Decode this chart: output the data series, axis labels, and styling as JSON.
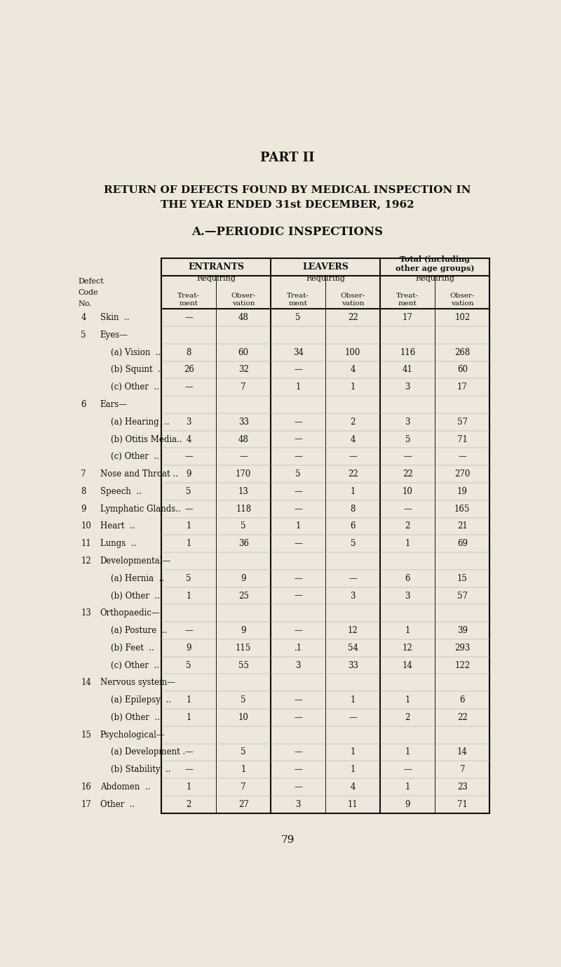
{
  "title_part": "PART II",
  "title_main_1": "RETURN OF DEFECTS FOUND BY MEDICAL INSPECTION IN",
  "title_main_2": "THE YEAR ENDED 31st DECEMBER, 1962",
  "title_section": "A.—PERIODIC INSPECTIONS",
  "bg_color": "#ede8db",
  "page_number": "79",
  "rows": [
    {
      "code": "4",
      "indent": 0,
      "label": "Skin  ..",
      "e_treat": "—",
      "e_obs": "48",
      "l_treat": "5",
      "l_obs": "22",
      "t_treat": "17",
      "t_obs": "102"
    },
    {
      "code": "5",
      "indent": 0,
      "label": "Eyes—",
      "e_treat": "",
      "e_obs": "",
      "l_treat": "",
      "l_obs": "",
      "t_treat": "",
      "t_obs": ""
    },
    {
      "code": "",
      "indent": 1,
      "label": "(a) Vision  ..",
      "e_treat": "8",
      "e_obs": "60",
      "l_treat": "34",
      "l_obs": "100",
      "t_treat": "116",
      "t_obs": "268"
    },
    {
      "code": "",
      "indent": 1,
      "label": "(b) Squint  ..",
      "e_treat": "26",
      "e_obs": "32",
      "l_treat": "—",
      "l_obs": "4",
      "t_treat": "41",
      "t_obs": "60"
    },
    {
      "code": "",
      "indent": 1,
      "label": "(c) Other  ..",
      "e_treat": "—",
      "e_obs": "7",
      "l_treat": "1",
      "l_obs": "1",
      "t_treat": "3",
      "t_obs": "17"
    },
    {
      "code": "6",
      "indent": 0,
      "label": "Ears—",
      "e_treat": "",
      "e_obs": "",
      "l_treat": "",
      "l_obs": "",
      "t_treat": "",
      "t_obs": ""
    },
    {
      "code": "",
      "indent": 1,
      "label": "(a) Hearing  ..",
      "e_treat": "3",
      "e_obs": "33",
      "l_treat": "—",
      "l_obs": "2",
      "t_treat": "3",
      "t_obs": "57"
    },
    {
      "code": "",
      "indent": 1,
      "label": "(b) Otitis Media..",
      "e_treat": "4",
      "e_obs": "48",
      "l_treat": "—",
      "l_obs": "4",
      "t_treat": "5",
      "t_obs": "71"
    },
    {
      "code": "",
      "indent": 1,
      "label": "(c) Other  ..",
      "e_treat": "—",
      "e_obs": "—",
      "l_treat": "—",
      "l_obs": "—",
      "t_treat": "—",
      "t_obs": "—"
    },
    {
      "code": "7",
      "indent": 0,
      "label": "Nose and Throat ..",
      "e_treat": "9",
      "e_obs": "170",
      "l_treat": "5",
      "l_obs": "22",
      "t_treat": "22",
      "t_obs": "270"
    },
    {
      "code": "8",
      "indent": 0,
      "label": "Speech  ..",
      "e_treat": "5",
      "e_obs": "13",
      "l_treat": "—",
      "l_obs": "1",
      "t_treat": "10",
      "t_obs": "19"
    },
    {
      "code": "9",
      "indent": 0,
      "label": "Lymphatic Glands..",
      "e_treat": "—",
      "e_obs": "118",
      "l_treat": "—",
      "l_obs": "8",
      "t_treat": "—",
      "t_obs": "165"
    },
    {
      "code": "10",
      "indent": 0,
      "label": "Heart  ..",
      "e_treat": "1",
      "e_obs": "5",
      "l_treat": "1",
      "l_obs": "6",
      "t_treat": "2",
      "t_obs": "21"
    },
    {
      "code": "11",
      "indent": 0,
      "label": "Lungs  ..",
      "e_treat": "1",
      "e_obs": "36",
      "l_treat": "—",
      "l_obs": "5",
      "t_treat": "1",
      "t_obs": "69"
    },
    {
      "code": "12",
      "indent": 0,
      "label": "Developmental—",
      "e_treat": "",
      "e_obs": "",
      "l_treat": "",
      "l_obs": "",
      "t_treat": "",
      "t_obs": ""
    },
    {
      "code": "",
      "indent": 1,
      "label": "(a) Hernia  ..",
      "e_treat": "5",
      "e_obs": "9",
      "l_treat": "—",
      "l_obs": "—",
      "t_treat": "6",
      "t_obs": "15"
    },
    {
      "code": "",
      "indent": 1,
      "label": "(b) Other  ..",
      "e_treat": "1",
      "e_obs": "25",
      "l_treat": "—",
      "l_obs": "3",
      "t_treat": "3",
      "t_obs": "57"
    },
    {
      "code": "13",
      "indent": 0,
      "label": "Orthopaedic—",
      "e_treat": "",
      "e_obs": "",
      "l_treat": "",
      "l_obs": "",
      "t_treat": "",
      "t_obs": ""
    },
    {
      "code": "",
      "indent": 1,
      "label": "(a) Posture  ..",
      "e_treat": "—",
      "e_obs": "9",
      "l_treat": "—",
      "l_obs": "12",
      "t_treat": "1",
      "t_obs": "39"
    },
    {
      "code": "",
      "indent": 1,
      "label": "(b) Feet  ..",
      "e_treat": "9",
      "e_obs": "115",
      "l_treat": ".1",
      "l_obs": "54",
      "t_treat": "12",
      "t_obs": "293"
    },
    {
      "code": "",
      "indent": 1,
      "label": "(c) Other  ..",
      "e_treat": "5",
      "e_obs": "55",
      "l_treat": "3",
      "l_obs": "33",
      "t_treat": "14",
      "t_obs": "122"
    },
    {
      "code": "14",
      "indent": 0,
      "label": "Nervous system—",
      "e_treat": "",
      "e_obs": "",
      "l_treat": "",
      "l_obs": "",
      "t_treat": "",
      "t_obs": ""
    },
    {
      "code": "",
      "indent": 1,
      "label": "(a) Epilepsy  ..",
      "e_treat": "1",
      "e_obs": "5",
      "l_treat": "—",
      "l_obs": "1",
      "t_treat": "1",
      "t_obs": "6"
    },
    {
      "code": "",
      "indent": 1,
      "label": "(b) Other  ..",
      "e_treat": "1",
      "e_obs": "10",
      "l_treat": "—",
      "l_obs": "—",
      "t_treat": "2",
      "t_obs": "22"
    },
    {
      "code": "15",
      "indent": 0,
      "label": "Psychological—",
      "e_treat": "",
      "e_obs": "",
      "l_treat": "",
      "l_obs": "",
      "t_treat": "",
      "t_obs": ""
    },
    {
      "code": "",
      "indent": 1,
      "label": "(a) Development .",
      "e_treat": "—",
      "e_obs": "5",
      "l_treat": "—",
      "l_obs": "1",
      "t_treat": "1",
      "t_obs": "14"
    },
    {
      "code": "",
      "indent": 1,
      "label": "(b) Stability  ..",
      "e_treat": "—",
      "e_obs": "1",
      "l_treat": "—",
      "l_obs": "1",
      "t_treat": "—",
      "t_obs": "7"
    },
    {
      "code": "16",
      "indent": 0,
      "label": "Abdomen  ..",
      "e_treat": "1",
      "e_obs": "7",
      "l_treat": "—",
      "l_obs": "4",
      "t_treat": "1",
      "t_obs": "23"
    },
    {
      "code": "17",
      "indent": 0,
      "label": "Other  ..",
      "e_treat": "2",
      "e_obs": "27",
      "l_treat": "3",
      "l_obs": "11",
      "t_treat": "9",
      "t_obs": "71"
    }
  ]
}
